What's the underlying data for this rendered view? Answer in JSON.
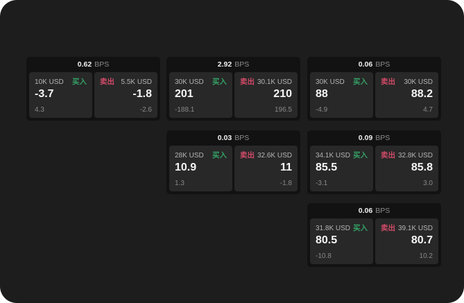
{
  "ui": {
    "bps_unit": "BPS",
    "buy_label": "买入",
    "sell_label": "卖出"
  },
  "colors": {
    "page_bg": "#1d1d1e",
    "card_bg": "#121212",
    "panel_bg": "#282828",
    "buy_green": "#34a066",
    "sell_red": "#cf4a67"
  },
  "cards": [
    {
      "bps": "0.62",
      "buy": {
        "amount": "10K USD",
        "value": "-3.7",
        "sub": "4.3"
      },
      "sell": {
        "amount": "5.5K USD",
        "value": "-1.8",
        "sub": "-2.6"
      }
    },
    {
      "bps": "2.92",
      "buy": {
        "amount": "30K USD",
        "value": "201",
        "sub": "-188.1"
      },
      "sell": {
        "amount": "30.1K USD",
        "value": "210",
        "sub": "196.5"
      }
    },
    {
      "bps": "0.06",
      "buy": {
        "amount": "30K USD",
        "value": "88",
        "sub": "-4.9"
      },
      "sell": {
        "amount": "30K USD",
        "value": "88.2",
        "sub": "4.7"
      }
    },
    {
      "bps": "0.03",
      "buy": {
        "amount": "28K USD",
        "value": "10.9",
        "sub": "1.3"
      },
      "sell": {
        "amount": "32.6K USD",
        "value": "11",
        "sub": "-1.8"
      }
    },
    {
      "bps": "0.09",
      "buy": {
        "amount": "34.1K USD",
        "value": "85.5",
        "sub": "-3.1"
      },
      "sell": {
        "amount": "32.8K USD",
        "value": "85.8",
        "sub": "3.0"
      }
    },
    {
      "bps": "0.06",
      "buy": {
        "amount": "31.8K USD",
        "value": "80.5",
        "sub": "-10.8"
      },
      "sell": {
        "amount": "39.1K USD",
        "value": "80.7",
        "sub": "10.2"
      }
    }
  ]
}
